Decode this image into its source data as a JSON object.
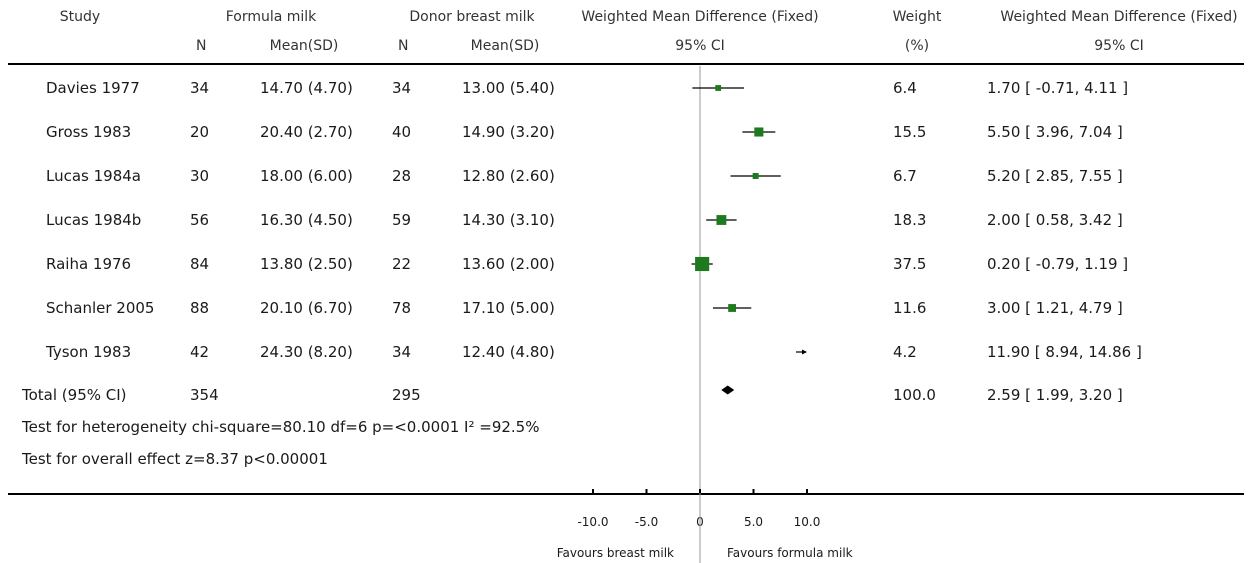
{
  "header": {
    "study": "Study",
    "group1": "Formula milk",
    "group2": "Donor breast milk",
    "n1": "N",
    "mean1": "Mean(SD)",
    "n2": "N",
    "mean2": "Mean(SD)",
    "plot_title": "Weighted Mean Difference (Fixed)",
    "plot_ci": "95% CI",
    "weight_title": "Weight",
    "weight_unit": "(%)",
    "wmd_title": "Weighted Mean Difference (Fixed)",
    "wmd_ci": "95% CI"
  },
  "rows": [
    {
      "study": "Davies 1977",
      "n1": "34",
      "mean1": "14.70 (4.70)",
      "n2": "34",
      "mean2": "13.00 (5.40)",
      "weight": "6.4",
      "ci_text": "1.70 [ -0.71, 4.11 ]"
    },
    {
      "study": "Gross 1983",
      "n1": "20",
      "mean1": "20.40 (2.70)",
      "n2": "40",
      "mean2": "14.90 (3.20)",
      "weight": "15.5",
      "ci_text": "5.50 [ 3.96, 7.04 ]"
    },
    {
      "study": "Lucas 1984a",
      "n1": "30",
      "mean1": "18.00 (6.00)",
      "n2": "28",
      "mean2": "12.80 (2.60)",
      "weight": "6.7",
      "ci_text": "5.20 [ 2.85, 7.55 ]"
    },
    {
      "study": "Lucas 1984b",
      "n1": "56",
      "mean1": "16.30 (4.50)",
      "n2": "59",
      "mean2": "14.30 (3.10)",
      "weight": "18.3",
      "ci_text": "2.00 [ 0.58, 3.42 ]"
    },
    {
      "study": "Raiha 1976",
      "n1": "84",
      "mean1": "13.80 (2.50)",
      "n2": "22",
      "mean2": "13.60 (2.00)",
      "weight": "37.5",
      "ci_text": "0.20 [ -0.79, 1.19 ]"
    },
    {
      "study": "Schanler 2005",
      "n1": "88",
      "mean1": "20.10 (6.70)",
      "n2": "78",
      "mean2": "17.10 (5.00)",
      "weight": "11.6",
      "ci_text": "3.00 [ 1.21, 4.79 ]"
    },
    {
      "study": "Tyson 1983",
      "n1": "42",
      "mean1": "24.30 (8.20)",
      "n2": "34",
      "mean2": "12.40 (4.80)",
      "weight": "4.2",
      "ci_text": "11.90 [ 8.94, 14.86 ]"
    }
  ],
  "total": {
    "label": "Total (95% CI)",
    "n1": "354",
    "n2": "295",
    "weight": "100.0",
    "ci_text": "2.59 [ 1.99, 3.20 ]"
  },
  "heterogeneity": "Test for heterogeneity chi-square=80.10 df=6 p=<0.0001 I² =92.5%",
  "overall_effect": "Test for overall effect z=8.37   p<0.00001",
  "axis_ticks": [
    "-10.0",
    "-5.0",
    "0",
    "5.0",
    "10.0"
  ],
  "favours_left": "Favours breast milk",
  "favours_right": "Favours formula milk",
  "colors": {
    "marker": "#1e7a1e",
    "line": "#000000",
    "zero_line": "#999999"
  },
  "chart_data": {
    "type": "scatter",
    "title": "",
    "xlabel": "",
    "xlim": [
      -10,
      10
    ],
    "x_ticks": [
      -10,
      -5,
      0,
      5,
      10
    ],
    "series": [
      {
        "values": [
          {
            "study": "Davies 1977",
            "mean": 1.7,
            "lower": -0.71,
            "upper": 4.11,
            "weight": 6.4
          },
          {
            "study": "Gross 1983",
            "mean": 5.5,
            "lower": 3.96,
            "upper": 7.04,
            "weight": 15.5
          },
          {
            "study": "Lucas 1984a",
            "mean": 5.2,
            "lower": 2.85,
            "upper": 7.55,
            "weight": 6.7
          },
          {
            "study": "Lucas 1984b",
            "mean": 2.0,
            "lower": 0.58,
            "upper": 3.42,
            "weight": 18.3
          },
          {
            "study": "Raiha 1976",
            "mean": 0.2,
            "lower": -0.79,
            "upper": 1.19,
            "weight": 37.5
          },
          {
            "study": "Schanler 2005",
            "mean": 3.0,
            "lower": 1.21,
            "upper": 4.79,
            "weight": 11.6
          },
          {
            "study": "Tyson 1983",
            "mean": 11.9,
            "lower": 8.94,
            "upper": 14.86,
            "weight": 4.2
          }
        ]
      }
    ],
    "pooled": {
      "label": "Total (95% CI)",
      "mean": 2.59,
      "lower": 1.99,
      "upper": 3.2,
      "weight": 100.0
    }
  }
}
